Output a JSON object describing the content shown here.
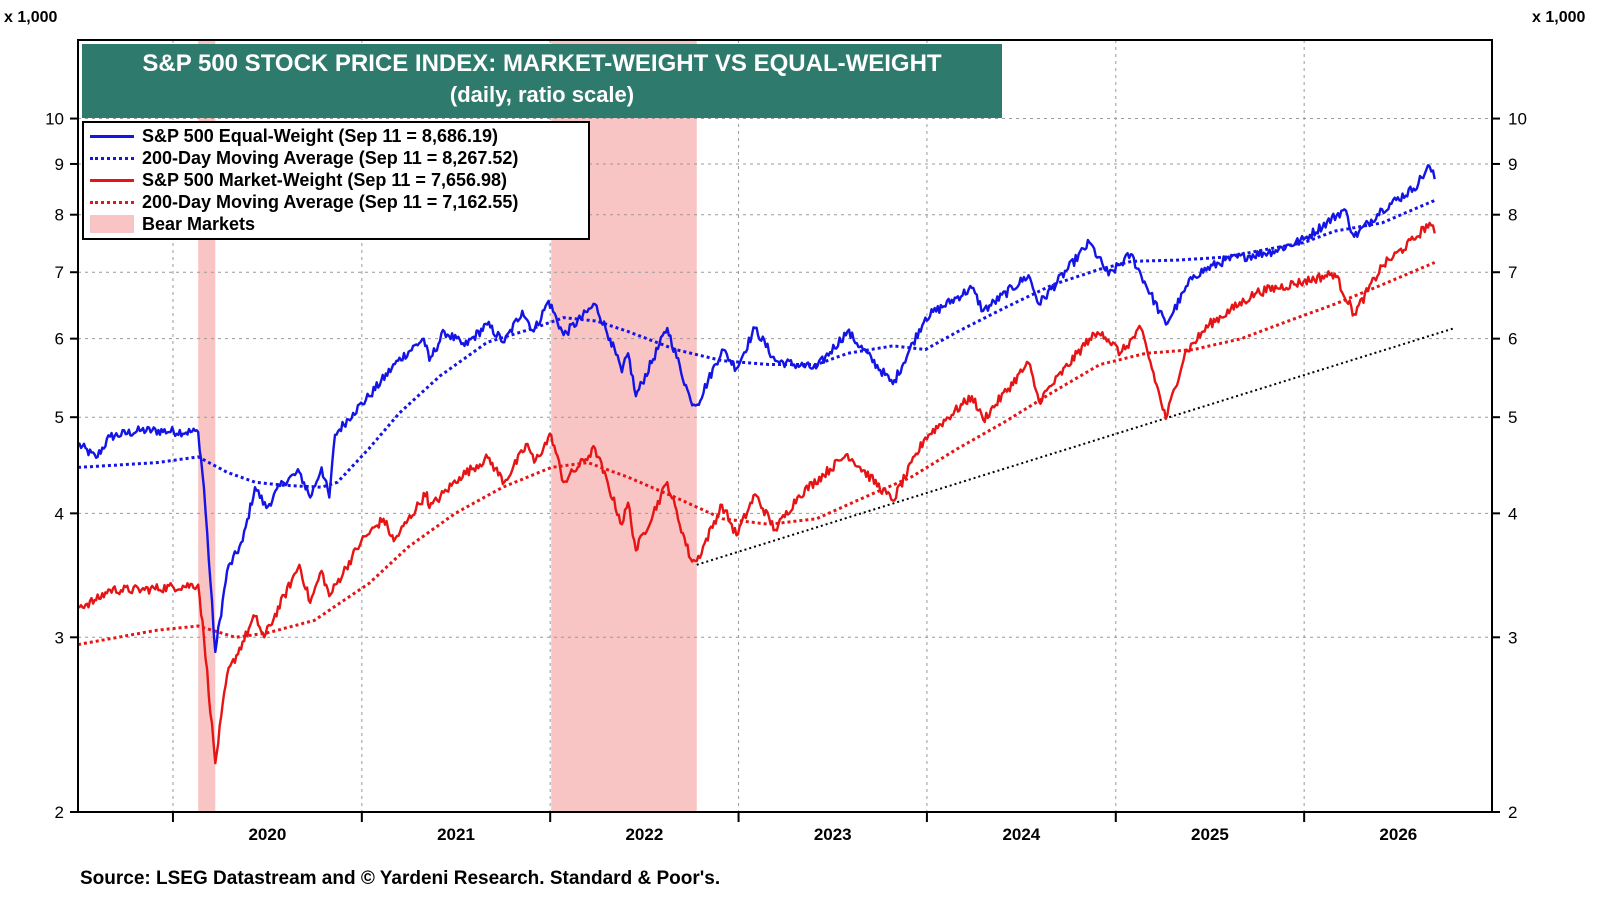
{
  "chart_data": {
    "type": "line",
    "title": "S&P 500 STOCK PRICE INDEX: MARKET-WEIGHT VS EQUAL-WEIGHT",
    "subtitle": "(daily, ratio scale)",
    "y_unit_left": "x 1,000",
    "y_unit_right": "x 1,000",
    "y_scale": "log",
    "ylim": [
      2,
      12
    ],
    "xlim": [
      "2019-07-01",
      "2026-12-31"
    ],
    "x_ticks": [
      "2020",
      "2021",
      "2022",
      "2023",
      "2024",
      "2025",
      "2026"
    ],
    "y_ticks": [
      "2",
      "3",
      "4",
      "5",
      "6",
      "7",
      "8",
      "9",
      "10"
    ],
    "grid": true,
    "legend_position": "top-left",
    "colors": {
      "equal": "#1414e6",
      "market": "#e61414",
      "bear": "#f9c4c4",
      "trend": "#000000",
      "title_bg": "#2e7b6d"
    },
    "bear_markets": [
      {
        "start": "2020-02-19",
        "end": "2020-03-23"
      },
      {
        "start": "2022-01-03",
        "end": "2022-10-12"
      }
    ],
    "series": [
      {
        "name": "S&P 500 Equal-Weight (Sep 11 = 8,686.19)",
        "style": "solid",
        "color": "#1414e6",
        "points": [
          [
            "2019-07-01",
            4.7
          ],
          [
            "2019-08-05",
            4.55
          ],
          [
            "2019-09-01",
            4.78
          ],
          [
            "2019-11-01",
            4.85
          ],
          [
            "2020-02-19",
            4.83
          ],
          [
            "2020-03-01",
            4.25
          ],
          [
            "2020-03-23",
            2.9
          ],
          [
            "2020-04-15",
            3.5
          ],
          [
            "2020-05-15",
            3.75
          ],
          [
            "2020-06-08",
            4.25
          ],
          [
            "2020-06-30",
            4.05
          ],
          [
            "2020-08-01",
            4.3
          ],
          [
            "2020-09-02",
            4.4
          ],
          [
            "2020-09-23",
            4.15
          ],
          [
            "2020-10-15",
            4.45
          ],
          [
            "2020-10-30",
            4.15
          ],
          [
            "2020-11-10",
            4.8
          ],
          [
            "2020-12-15",
            5.05
          ],
          [
            "2021-01-15",
            5.25
          ],
          [
            "2021-03-12",
            5.7
          ],
          [
            "2021-05-01",
            6.0
          ],
          [
            "2021-05-12",
            5.7
          ],
          [
            "2021-06-10",
            6.1
          ],
          [
            "2021-07-19",
            5.9
          ],
          [
            "2021-09-01",
            6.2
          ],
          [
            "2021-10-04",
            5.95
          ],
          [
            "2021-11-08",
            6.4
          ],
          [
            "2021-11-30",
            6.1
          ],
          [
            "2021-12-29",
            6.55
          ],
          [
            "2022-01-27",
            6.05
          ],
          [
            "2022-03-29",
            6.5
          ],
          [
            "2022-04-27",
            6.0
          ],
          [
            "2022-05-20",
            5.55
          ],
          [
            "2022-06-01",
            5.8
          ],
          [
            "2022-06-16",
            5.25
          ],
          [
            "2022-08-16",
            6.15
          ],
          [
            "2022-09-30",
            5.2
          ],
          [
            "2022-10-13",
            5.15
          ],
          [
            "2022-11-30",
            5.85
          ],
          [
            "2022-12-28",
            5.6
          ],
          [
            "2023-02-02",
            6.15
          ],
          [
            "2023-03-13",
            5.7
          ],
          [
            "2023-05-31",
            5.6
          ],
          [
            "2023-07-31",
            6.1
          ],
          [
            "2023-10-27",
            5.4
          ],
          [
            "2023-12-29",
            6.3
          ],
          [
            "2024-03-28",
            6.75
          ],
          [
            "2024-04-19",
            6.4
          ],
          [
            "2024-07-16",
            6.95
          ],
          [
            "2024-08-05",
            6.5
          ],
          [
            "2024-11-11",
            7.5
          ],
          [
            "2024-12-18",
            6.95
          ],
          [
            "2025-01-30",
            7.3
          ],
          [
            "2025-04-08",
            6.2
          ],
          [
            "2025-06-01",
            6.95
          ],
          [
            "2025-08-01",
            7.2
          ],
          [
            "2025-11-01",
            7.35
          ],
          [
            "2025-12-31",
            7.55
          ],
          [
            "2026-03-20",
            8.1
          ],
          [
            "2026-04-08",
            7.6
          ],
          [
            "2026-06-01",
            8.1
          ],
          [
            "2026-08-01",
            8.5
          ],
          [
            "2026-09-01",
            8.95
          ],
          [
            "2026-09-11",
            8.69
          ]
        ]
      },
      {
        "name": "200-Day Moving Average (Sep 11 = 8,267.52)",
        "style": "dotted",
        "color": "#1414e6",
        "points": [
          [
            "2019-07-01",
            4.45
          ],
          [
            "2019-12-01",
            4.5
          ],
          [
            "2020-02-19",
            4.56
          ],
          [
            "2020-04-15",
            4.4
          ],
          [
            "2020-06-08",
            4.3
          ],
          [
            "2020-08-01",
            4.27
          ],
          [
            "2020-10-15",
            4.25
          ],
          [
            "2020-11-15",
            4.3
          ],
          [
            "2021-01-15",
            4.65
          ],
          [
            "2021-03-15",
            5.05
          ],
          [
            "2021-06-01",
            5.5
          ],
          [
            "2021-09-01",
            5.95
          ],
          [
            "2021-12-01",
            6.15
          ],
          [
            "2022-01-27",
            6.3
          ],
          [
            "2022-04-01",
            6.25
          ],
          [
            "2022-06-01",
            6.1
          ],
          [
            "2022-09-01",
            5.85
          ],
          [
            "2022-12-01",
            5.7
          ],
          [
            "2023-03-01",
            5.65
          ],
          [
            "2023-06-01",
            5.65
          ],
          [
            "2023-08-01",
            5.8
          ],
          [
            "2023-10-27",
            5.9
          ],
          [
            "2023-12-29",
            5.85
          ],
          [
            "2024-03-01",
            6.1
          ],
          [
            "2024-06-01",
            6.45
          ],
          [
            "2024-09-01",
            6.8
          ],
          [
            "2024-12-01",
            7.05
          ],
          [
            "2025-02-01",
            7.18
          ],
          [
            "2025-05-01",
            7.2
          ],
          [
            "2025-08-01",
            7.25
          ],
          [
            "2025-11-01",
            7.4
          ],
          [
            "2026-01-01",
            7.5
          ],
          [
            "2026-03-01",
            7.7
          ],
          [
            "2026-06-01",
            7.85
          ],
          [
            "2026-09-11",
            8.27
          ]
        ]
      },
      {
        "name": "S&P 500 Market-Weight (Sep 11 = 7,656.98)",
        "style": "solid",
        "color": "#e61414",
        "points": [
          [
            "2019-07-01",
            3.22
          ],
          [
            "2019-08-05",
            3.27
          ],
          [
            "2019-09-01",
            3.35
          ],
          [
            "2019-11-01",
            3.35
          ],
          [
            "2020-02-19",
            3.39
          ],
          [
            "2020-03-01",
            3.0
          ],
          [
            "2020-03-23",
            2.24
          ],
          [
            "2020-04-15",
            2.75
          ],
          [
            "2020-06-08",
            3.15
          ],
          [
            "2020-06-26",
            3.0
          ],
          [
            "2020-09-02",
            3.55
          ],
          [
            "2020-09-23",
            3.25
          ],
          [
            "2020-10-15",
            3.5
          ],
          [
            "2020-10-30",
            3.3
          ],
          [
            "2020-12-31",
            3.75
          ],
          [
            "2021-02-12",
            3.95
          ],
          [
            "2021-03-04",
            3.75
          ],
          [
            "2021-05-07",
            4.2
          ],
          [
            "2021-05-12",
            4.05
          ],
          [
            "2021-07-09",
            4.35
          ],
          [
            "2021-09-02",
            4.55
          ],
          [
            "2021-10-04",
            4.3
          ],
          [
            "2021-11-18",
            4.7
          ],
          [
            "2021-12-01",
            4.5
          ],
          [
            "2022-01-03",
            4.8
          ],
          [
            "2022-01-27",
            4.3
          ],
          [
            "2022-03-29",
            4.65
          ],
          [
            "2022-05-20",
            3.9
          ],
          [
            "2022-06-01",
            4.1
          ],
          [
            "2022-06-16",
            3.67
          ],
          [
            "2022-08-16",
            4.3
          ],
          [
            "2022-09-30",
            3.6
          ],
          [
            "2022-10-12",
            3.58
          ],
          [
            "2022-11-30",
            4.08
          ],
          [
            "2022-12-28",
            3.8
          ],
          [
            "2023-02-02",
            4.18
          ],
          [
            "2023-03-13",
            3.85
          ],
          [
            "2023-04-28",
            4.17
          ],
          [
            "2023-07-31",
            4.59
          ],
          [
            "2023-10-27",
            4.12
          ],
          [
            "2023-12-29",
            4.77
          ],
          [
            "2024-03-28",
            5.25
          ],
          [
            "2024-04-19",
            4.97
          ],
          [
            "2024-07-16",
            5.67
          ],
          [
            "2024-08-05",
            5.19
          ],
          [
            "2024-11-11",
            6.0
          ],
          [
            "2024-12-06",
            6.09
          ],
          [
            "2025-01-10",
            5.8
          ],
          [
            "2025-02-19",
            6.14
          ],
          [
            "2025-04-08",
            4.98
          ],
          [
            "2025-05-15",
            5.8
          ],
          [
            "2025-07-01",
            6.2
          ],
          [
            "2025-10-01",
            6.68
          ],
          [
            "2025-12-31",
            6.85
          ],
          [
            "2026-03-01",
            6.98
          ],
          [
            "2026-04-08",
            6.35
          ],
          [
            "2026-06-01",
            7.1
          ],
          [
            "2026-08-01",
            7.55
          ],
          [
            "2026-09-01",
            7.85
          ],
          [
            "2026-09-11",
            7.66
          ]
        ]
      },
      {
        "name": "200-Day Moving Average (Sep 11 = 7,162.55)",
        "style": "dotted",
        "color": "#e61414",
        "points": [
          [
            "2019-07-01",
            2.95
          ],
          [
            "2019-12-01",
            3.05
          ],
          [
            "2020-02-19",
            3.08
          ],
          [
            "2020-05-01",
            3.0
          ],
          [
            "2020-07-01",
            3.03
          ],
          [
            "2020-10-01",
            3.12
          ],
          [
            "2020-11-01",
            3.2
          ],
          [
            "2021-01-15",
            3.4
          ],
          [
            "2021-04-01",
            3.7
          ],
          [
            "2021-07-01",
            4.0
          ],
          [
            "2021-10-01",
            4.25
          ],
          [
            "2022-01-03",
            4.45
          ],
          [
            "2022-03-15",
            4.5
          ],
          [
            "2022-06-01",
            4.35
          ],
          [
            "2022-09-01",
            4.15
          ],
          [
            "2022-12-01",
            3.95
          ],
          [
            "2023-03-01",
            3.9
          ],
          [
            "2023-06-01",
            3.95
          ],
          [
            "2023-09-01",
            4.15
          ],
          [
            "2023-12-01",
            4.35
          ],
          [
            "2024-03-01",
            4.65
          ],
          [
            "2024-06-01",
            4.95
          ],
          [
            "2024-09-01",
            5.3
          ],
          [
            "2024-12-01",
            5.65
          ],
          [
            "2025-03-01",
            5.8
          ],
          [
            "2025-06-01",
            5.85
          ],
          [
            "2025-09-01",
            6.0
          ],
          [
            "2025-12-01",
            6.25
          ],
          [
            "2026-03-01",
            6.5
          ],
          [
            "2026-06-01",
            6.8
          ],
          [
            "2026-09-11",
            7.16
          ]
        ]
      },
      {
        "name": "Bear Markets",
        "style": "band",
        "color": "#f9c4c4"
      }
    ],
    "trendline": {
      "style": "dotted",
      "color": "#000000",
      "points": [
        [
          "2022-10-12",
          3.55
        ],
        [
          "2026-10-20",
          6.15
        ]
      ]
    }
  },
  "source": "Source: LSEG Datastream and © Yardeni Research. Standard & Poor's."
}
